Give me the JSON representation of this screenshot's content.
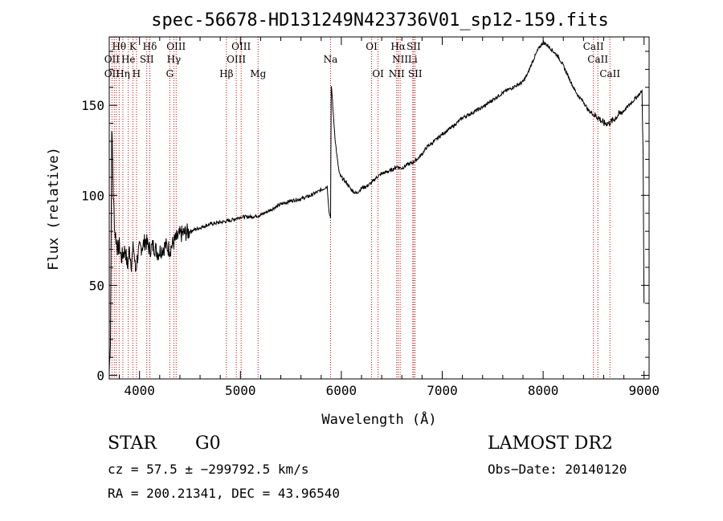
{
  "chart_data": {
    "type": "line",
    "title": "spec-56678-HD131249N423736V01_sp12-159.fits",
    "xlabel": "Wavelength (Å)",
    "ylabel": "Flux (relative)",
    "xlim": [
      3700,
      9050
    ],
    "ylim": [
      -2,
      188
    ],
    "x_ticks": [
      4000,
      5000,
      6000,
      7000,
      8000,
      9000
    ],
    "y_ticks": [
      0,
      50,
      100,
      150
    ],
    "grid": false,
    "series": [
      {
        "x": [
          3700,
          3712,
          3725,
          3740,
          3755,
          3770,
          3785,
          3800,
          3820,
          3840,
          3860,
          3880,
          3900,
          3920,
          3940,
          3960,
          3980,
          4000,
          4030,
          4060,
          4100,
          4140,
          4180,
          4220,
          4260,
          4300,
          4340,
          4400,
          4500,
          4600,
          4700,
          4800,
          4900,
          5000,
          5100,
          5200,
          5300,
          5400,
          5500,
          5600,
          5700,
          5800,
          5860,
          5880,
          5893,
          5900,
          5910,
          5920,
          5940,
          5960,
          5980,
          6000,
          6050,
          6100,
          6150,
          6200,
          6250,
          6300,
          6350,
          6400,
          6450,
          6500,
          6550,
          6600,
          6650,
          6700,
          6750,
          6800,
          6850,
          6900,
          7000,
          7100,
          7200,
          7300,
          7400,
          7500,
          7600,
          7700,
          7800,
          7850,
          7900,
          7950,
          8000,
          8050,
          8100,
          8150,
          8200,
          8250,
          8300,
          8350,
          8400,
          8450,
          8500,
          8550,
          8600,
          8650,
          8700,
          8750,
          8800,
          8850,
          8900,
          8950,
          8980,
          8990,
          9000
        ],
        "y": [
          2,
          20,
          140,
          100,
          80,
          75,
          70,
          72,
          65,
          68,
          70,
          60,
          70,
          62,
          72,
          58,
          66,
          70,
          72,
          75,
          70,
          72,
          68,
          70,
          72,
          70,
          74,
          78,
          80,
          82,
          84,
          85,
          86,
          88,
          88,
          89,
          92,
          95,
          97,
          98,
          100,
          103,
          105,
          90,
          88,
          160,
          155,
          145,
          130,
          120,
          112,
          110,
          107,
          103,
          101,
          104,
          105,
          107,
          110,
          112,
          113,
          114,
          116,
          115,
          117,
          118,
          120,
          123,
          127,
          129,
          134,
          138,
          143,
          146,
          149,
          153,
          157,
          160,
          163,
          168,
          175,
          181,
          185,
          183,
          180,
          177,
          172,
          166,
          160,
          155,
          152,
          147,
          145,
          143,
          140,
          140,
          142,
          145,
          147,
          150,
          153,
          156,
          158,
          125,
          40
        ]
      }
    ],
    "annotations": [
      {
        "label": "Hθ",
        "x": 3798,
        "row": 1
      },
      {
        "label": "K",
        "x": 3934,
        "row": 1
      },
      {
        "label": "Hδ",
        "x": 4102,
        "row": 1
      },
      {
        "label": "OIII",
        "x": 4363,
        "row": 1
      },
      {
        "label": "OIII",
        "x": 5007,
        "row": 1
      },
      {
        "label": "OI",
        "x": 6300,
        "row": 1
      },
      {
        "label": "Hα",
        "x": 6563,
        "row": 1
      },
      {
        "label": "SII",
        "x": 6717,
        "row": 1
      },
      {
        "label": "CaII",
        "x": 8498,
        "row": 1
      },
      {
        "label": "OII",
        "x": 3727,
        "row": 2
      },
      {
        "label": "He",
        "x": 3889,
        "row": 2
      },
      {
        "label": "SII",
        "x": 4072,
        "row": 2
      },
      {
        "label": "Hγ",
        "x": 4340,
        "row": 2
      },
      {
        "label": "OIII",
        "x": 4959,
        "row": 2
      },
      {
        "label": "Na",
        "x": 5893,
        "row": 2
      },
      {
        "label": "NII",
        "x": 6583,
        "row": 2
      },
      {
        "label": "Li",
        "x": 6708,
        "row": 2
      },
      {
        "label": "CaII",
        "x": 8542,
        "row": 2
      },
      {
        "label": "OII",
        "x": 3727,
        "row": 3
      },
      {
        "label": "Hη",
        "x": 3835,
        "row": 3
      },
      {
        "label": "H",
        "x": 3970,
        "row": 3
      },
      {
        "label": "G",
        "x": 4300,
        "row": 3
      },
      {
        "label": "Hβ",
        "x": 4861,
        "row": 3
      },
      {
        "label": "Mg",
        "x": 5175,
        "row": 3
      },
      {
        "label": "OI",
        "x": 6364,
        "row": 3
      },
      {
        "label": "NII",
        "x": 6548,
        "row": 3
      },
      {
        "label": "SII",
        "x": 6731,
        "row": 3
      },
      {
        "label": "CaII",
        "x": 8662,
        "row": 3
      }
    ],
    "line_marker_wavelengths": [
      3727,
      3750,
      3770,
      3798,
      3835,
      3889,
      3934,
      3970,
      4072,
      4102,
      4300,
      4340,
      4363,
      4861,
      4959,
      5007,
      5175,
      5893,
      6300,
      6364,
      6548,
      6563,
      6583,
      6708,
      6717,
      6731,
      8498,
      8542,
      8662
    ]
  },
  "info": {
    "object_class": "STAR",
    "subclass": "G0",
    "survey": "LAMOST DR2",
    "cz": "cz = 57.5 ± −299792.5 km/s",
    "obs_date": "Obs−Date: 20140120",
    "coords": "RA = 200.21341, DEC =  43.96540"
  },
  "colors": {
    "axis": "#000000",
    "spectrum": "#000000",
    "line_markers": "#cc0000"
  }
}
